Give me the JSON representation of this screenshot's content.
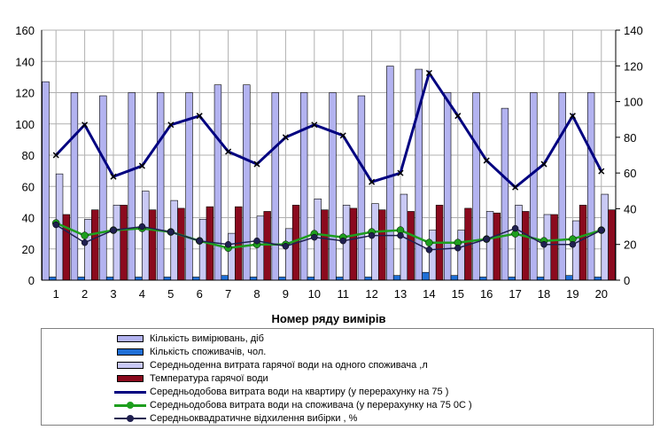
{
  "chart_data": {
    "type": "bar",
    "xlabel": "Номер ряду вимірів",
    "categories": [
      "1",
      "2",
      "3",
      "4",
      "5",
      "6",
      "7",
      "8",
      "9",
      "10",
      "11",
      "12",
      "13",
      "14",
      "15",
      "16",
      "17",
      "18",
      "19",
      "20"
    ],
    "y_left": {
      "lim": [
        0,
        160
      ],
      "ticks": [
        "0",
        "20",
        "40",
        "60",
        "80",
        "100",
        "120",
        "140",
        "160"
      ]
    },
    "y_right": {
      "lim": [
        0,
        140
      ],
      "ticks": [
        "0",
        "20",
        "40",
        "60",
        "80",
        "100",
        "120",
        "140"
      ]
    },
    "grid": true,
    "legend_position": "bottom",
    "series": [
      {
        "name": "Кількість вимірювань, діб",
        "kind": "bar",
        "axis": "left",
        "color": "#b3b3f0",
        "values": [
          127,
          120,
          118,
          120,
          120,
          120,
          125,
          125,
          120,
          120,
          120,
          118,
          137,
          135,
          120,
          120,
          110,
          120,
          120,
          120
        ]
      },
      {
        "name": "Кількість споживачів, чол.",
        "kind": "bar",
        "axis": "left",
        "color": "#1f6fd6",
        "values": [
          2,
          2,
          2,
          2,
          2,
          2,
          3,
          2,
          2,
          2,
          2,
          2,
          3,
          5,
          3,
          2,
          2,
          2,
          3,
          2
        ]
      },
      {
        "name": "Середньоденна витрата гарячої води на одного споживача ,л",
        "kind": "bar",
        "axis": "left",
        "color": "#c9c9f5",
        "values": [
          68,
          39,
          48,
          57,
          51,
          39,
          30,
          41,
          33,
          52,
          48,
          49,
          55,
          32,
          32,
          44,
          48,
          42,
          38,
          55
        ]
      },
      {
        "name": "Температура гарячої води",
        "kind": "bar",
        "axis": "left",
        "color": "#8b0a1e",
        "values": [
          42,
          45,
          48,
          45,
          46,
          47,
          47,
          44,
          48,
          45,
          46,
          45,
          44,
          48,
          46,
          43,
          44,
          42,
          48,
          45
        ]
      },
      {
        "name": "Середньодобова витрата води на квартиру (у перерахунку на 75 )",
        "kind": "line",
        "axis": "right",
        "color": "#000080",
        "values": [
          70,
          87,
          58,
          64,
          87,
          92,
          72,
          65,
          80,
          87,
          81,
          55,
          60,
          116,
          92,
          67,
          52,
          65,
          92,
          61
        ]
      },
      {
        "name": "Середньодобова витрата води на споживача (у перерахунку на 75 0С )",
        "kind": "line",
        "axis": "right",
        "color": "#1e9e1e",
        "values": [
          32,
          25,
          28,
          29,
          27,
          22,
          18,
          20,
          20,
          26,
          24,
          27,
          28,
          21,
          21,
          23,
          26,
          22,
          23,
          28
        ]
      },
      {
        "name": "Середньоквадратичне відхилення вибірки  , %",
        "kind": "line",
        "axis": "right",
        "color": "#202050",
        "values": [
          31,
          21,
          28,
          30,
          27,
          22,
          20,
          22,
          19,
          24,
          22,
          25,
          25,
          17,
          18,
          23,
          29,
          20,
          20,
          28
        ]
      }
    ]
  }
}
